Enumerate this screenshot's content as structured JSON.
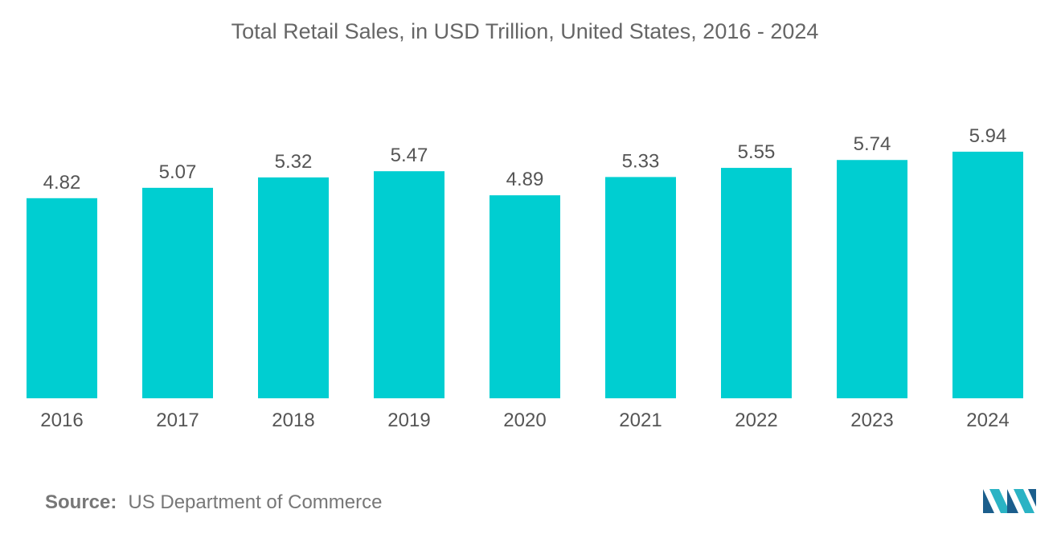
{
  "chart_data": {
    "type": "bar",
    "title": "Total Retail Sales, in USD Trillion, United States, 2016 - 2024",
    "categories": [
      "2016",
      "2017",
      "2018",
      "2019",
      "2020",
      "2021",
      "2022",
      "2023",
      "2024"
    ],
    "values": [
      4.82,
      5.07,
      5.32,
      5.47,
      4.89,
      5.33,
      5.55,
      5.74,
      5.94
    ],
    "value_labels": [
      "4.82",
      "5.07",
      "5.32",
      "5.47",
      "4.89",
      "5.33",
      "5.55",
      "5.74",
      "5.94"
    ],
    "xlabel": "",
    "ylabel": "",
    "grid": false,
    "legend": "none",
    "bar_color": "#00CED1"
  },
  "source": {
    "label": "Source:",
    "text": "US Department of Commerce"
  },
  "logo": {
    "icon": "brand-logo-icon",
    "colors": [
      "#1B5E8C",
      "#2BB3C4"
    ]
  }
}
